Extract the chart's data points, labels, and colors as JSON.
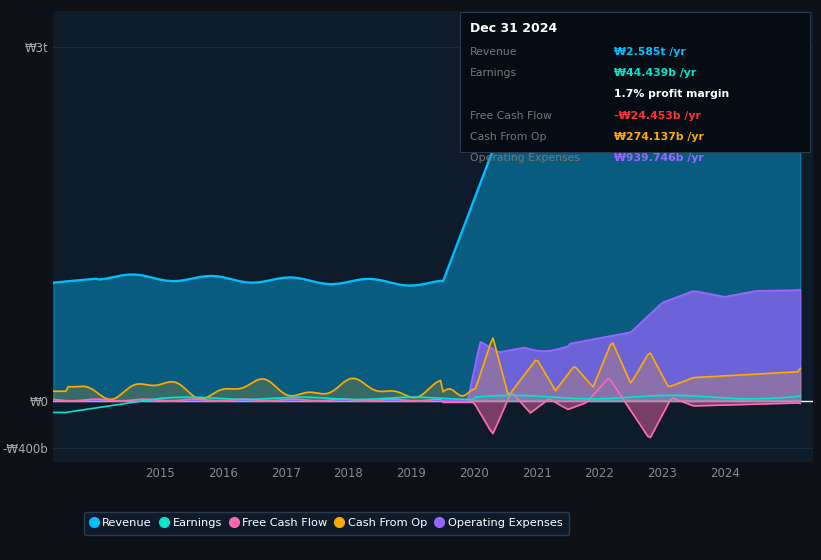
{
  "bg_color": "#0d1117",
  "plot_bg_color": "#0d1b2a",
  "colors": {
    "revenue": "#00bfff",
    "earnings": "#00e5cc",
    "free_cash_flow": "#ff69b4",
    "cash_from_op": "#ffaa00",
    "operating_expenses": "#9966ff"
  },
  "legend": [
    {
      "label": "Revenue",
      "color": "#00bfff"
    },
    {
      "label": "Earnings",
      "color": "#00e5cc"
    },
    {
      "label": "Free Cash Flow",
      "color": "#ff69b4"
    },
    {
      "label": "Cash From Op",
      "color": "#ffaa00"
    },
    {
      "label": "Operating Expenses",
      "color": "#9966ff"
    }
  ],
  "ytick_vals": [
    3000000000000,
    0,
    -400000000000
  ],
  "ytick_labels": [
    "₩3t",
    "₩0",
    "-₩400b"
  ],
  "xticks": [
    2015,
    2016,
    2017,
    2018,
    2019,
    2020,
    2021,
    2022,
    2023,
    2024
  ],
  "xlim": [
    2013.3,
    2025.4
  ],
  "ylim": [
    -520000000000,
    3300000000000
  ],
  "info_rows": [
    {
      "label": "Revenue",
      "value": "₩2.585t /yr",
      "value_color": "#00bfff"
    },
    {
      "label": "Earnings",
      "value": "₩44.439b /yr",
      "value_color": "#00e5cc"
    },
    {
      "label": "",
      "value": "1.7% profit margin",
      "value_color": "#ffffff"
    },
    {
      "label": "Free Cash Flow",
      "value": "-₩24.453b /yr",
      "value_color": "#ff3333"
    },
    {
      "label": "Cash From Op",
      "value": "₩274.137b /yr",
      "value_color": "#ffaa00"
    },
    {
      "label": "Operating Expenses",
      "value": "₩939.746b /yr",
      "value_color": "#9966ff"
    }
  ]
}
